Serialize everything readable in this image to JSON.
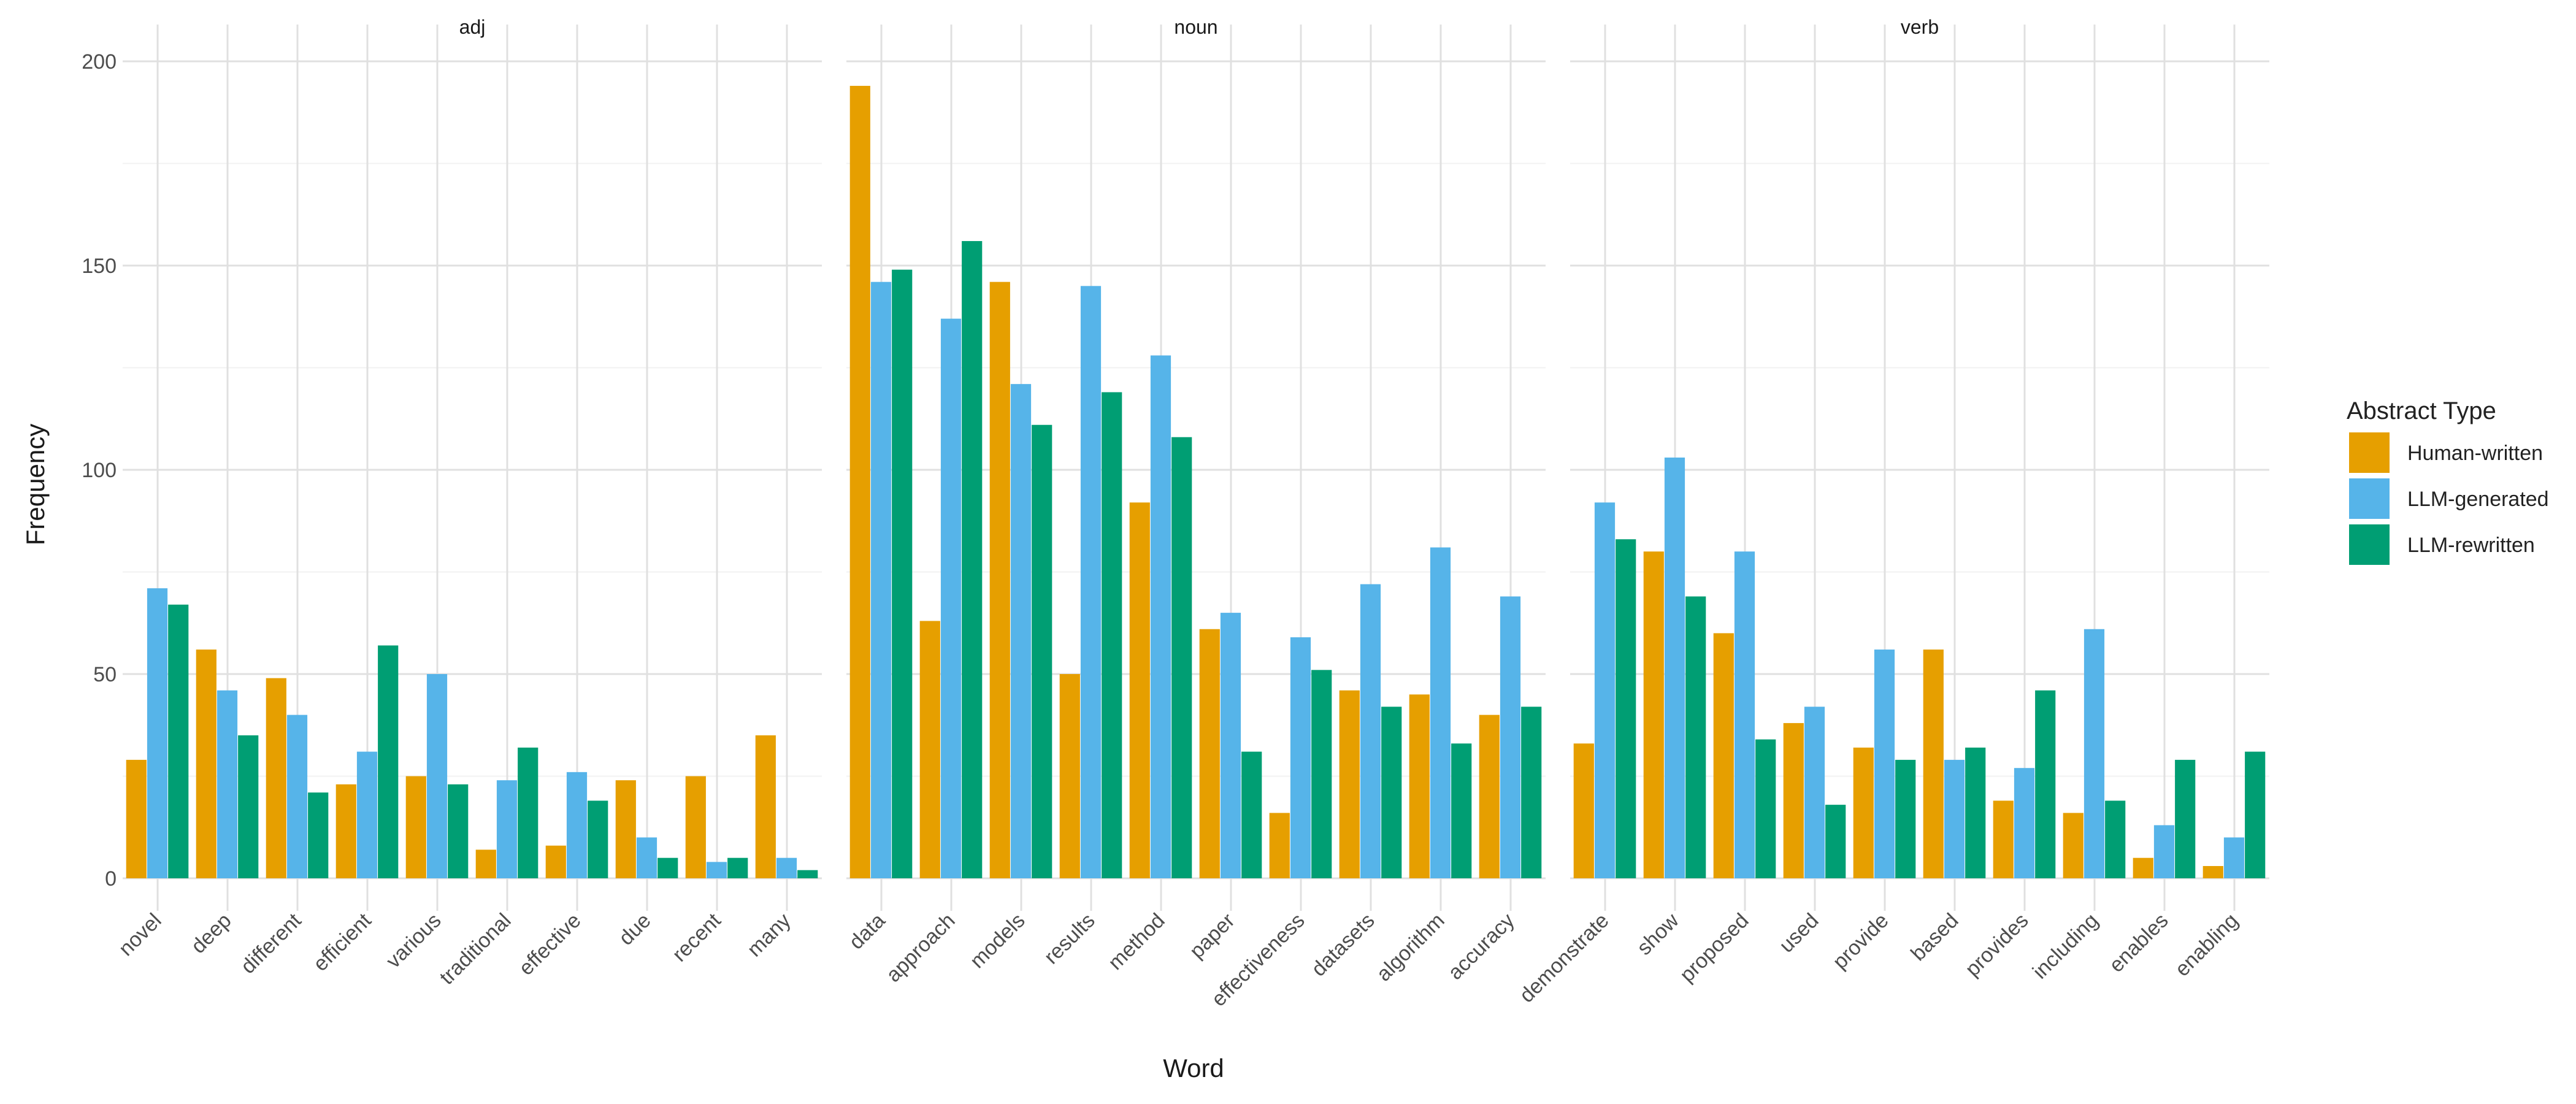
{
  "chart_data": {
    "type": "bar",
    "xlabel": "Word",
    "ylabel": "Frequency",
    "ylim": [
      0,
      200
    ],
    "yticks": [
      0,
      50,
      100,
      150,
      200
    ],
    "legend": {
      "title": "Abstract Type",
      "position": "right"
    },
    "series": [
      {
        "name": "Human-written",
        "color": "#E69F00"
      },
      {
        "name": "LLM-generated",
        "color": "#56B4E9"
      },
      {
        "name": "LLM-rewritten",
        "color": "#009E73"
      }
    ],
    "panels": [
      {
        "title": "adj",
        "categories": [
          "novel",
          "deep",
          "different",
          "efficient",
          "various",
          "traditional",
          "effective",
          "due",
          "recent",
          "many"
        ],
        "values": [
          [
            29,
            56,
            49,
            23,
            25,
            7,
            8,
            24,
            25,
            35
          ],
          [
            71,
            46,
            40,
            31,
            50,
            24,
            26,
            10,
            4,
            5
          ],
          [
            67,
            35,
            21,
            57,
            23,
            32,
            19,
            5,
            5,
            2
          ]
        ]
      },
      {
        "title": "noun",
        "categories": [
          "data",
          "approach",
          "models",
          "results",
          "method",
          "paper",
          "effectiveness",
          "datasets",
          "algorithm",
          "accuracy"
        ],
        "values": [
          [
            194,
            63,
            146,
            50,
            92,
            61,
            16,
            46,
            45,
            40
          ],
          [
            146,
            137,
            121,
            145,
            128,
            65,
            59,
            72,
            81,
            69
          ],
          [
            149,
            156,
            111,
            119,
            108,
            31,
            51,
            42,
            33,
            42
          ]
        ]
      },
      {
        "title": "verb",
        "categories": [
          "demonstrate",
          "show",
          "proposed",
          "used",
          "provide",
          "based",
          "provides",
          "including",
          "enables",
          "enabling"
        ],
        "values": [
          [
            33,
            80,
            60,
            38,
            32,
            56,
            19,
            16,
            5,
            3
          ],
          [
            92,
            103,
            80,
            42,
            56,
            29,
            27,
            61,
            13,
            10
          ],
          [
            83,
            69,
            34,
            18,
            29,
            32,
            46,
            19,
            29,
            31
          ]
        ]
      }
    ]
  }
}
